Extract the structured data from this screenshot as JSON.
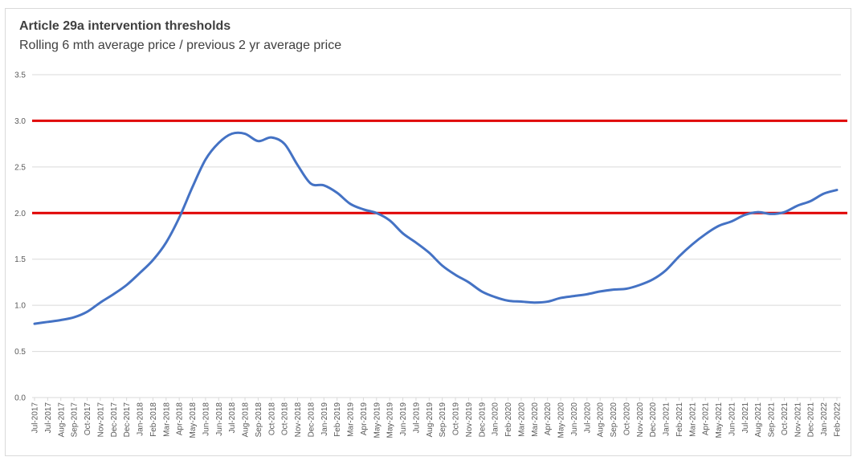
{
  "chart_data": {
    "type": "line",
    "title": "Article 29a intervention thresholds",
    "subtitle": "Rolling 6 mth average price / previous 2 yr average price",
    "xlabel": "",
    "ylabel": "",
    "ylim": [
      0,
      3.5
    ],
    "y_ticks": [
      "0.0",
      "0.5",
      "1.0",
      "1.5",
      "2.0",
      "2.5",
      "3.0",
      "3.5"
    ],
    "y_tick_values": [
      0,
      0.5,
      1.0,
      1.5,
      2.0,
      2.5,
      3.0,
      3.5
    ],
    "grid": true,
    "legend": "none",
    "categories": [
      "Jul-2017",
      "Jul-2017",
      "Aug-2017",
      "Sep-2017",
      "Oct-2017",
      "Nov-2017",
      "Dec-2017",
      "Dec-2017",
      "Jan-2018",
      "Feb-2018",
      "Mar-2018",
      "Apr-2018",
      "May-2018",
      "Jun-2018",
      "Jun-2018",
      "Jul-2018",
      "Aug-2018",
      "Sep-2018",
      "Oct-2018",
      "Oct-2018",
      "Nov-2018",
      "Dec-2018",
      "Jan-2019",
      "Feb-2019",
      "Mar-2019",
      "Apr-2019",
      "May-2019",
      "May-2019",
      "Jun-2019",
      "Jul-2019",
      "Aug-2019",
      "Sep-2019",
      "Oct-2019",
      "Nov-2019",
      "Dec-2019",
      "Jan-2020",
      "Feb-2020",
      "Mar-2020",
      "Mar-2020",
      "Apr-2020",
      "May-2020",
      "Jun-2020",
      "Jul-2020",
      "Aug-2020",
      "Sep-2020",
      "Oct-2020",
      "Nov-2020",
      "Dec-2020",
      "Jan-2021",
      "Feb-2021",
      "Mar-2021",
      "Apr-2021",
      "May-2021",
      "Jun-2021",
      "Jul-2021",
      "Aug-2021",
      "Sep-2021",
      "Oct-2021",
      "Nov-2021",
      "Dec-2021",
      "Jan-2022",
      "Feb-2022"
    ],
    "series": [
      {
        "name": "Rolling 6 mth average price / previous 2 yr average price",
        "color": "#4472c4",
        "values": [
          0.8,
          0.82,
          0.84,
          0.87,
          0.93,
          1.03,
          1.12,
          1.22,
          1.35,
          1.49,
          1.68,
          1.95,
          2.28,
          2.58,
          2.76,
          2.86,
          2.86,
          2.78,
          2.82,
          2.75,
          2.52,
          2.32,
          2.3,
          2.22,
          2.1,
          2.04,
          2.0,
          1.92,
          1.78,
          1.68,
          1.57,
          1.43,
          1.33,
          1.25,
          1.15,
          1.09,
          1.05,
          1.04,
          1.03,
          1.04,
          1.08,
          1.1,
          1.12,
          1.15,
          1.17,
          1.18,
          1.22,
          1.28,
          1.38,
          1.53,
          1.66,
          1.77,
          1.86,
          1.91,
          1.98,
          2.01,
          1.99,
          2.01,
          2.08,
          2.13,
          2.21,
          2.25
        ]
      }
    ],
    "thresholds": [
      {
        "name": "upper-threshold",
        "value": 3.0,
        "color": "#e00000"
      },
      {
        "name": "lower-threshold",
        "value": 2.0,
        "color": "#e00000"
      }
    ],
    "grid_color": "#d9d9d9"
  }
}
